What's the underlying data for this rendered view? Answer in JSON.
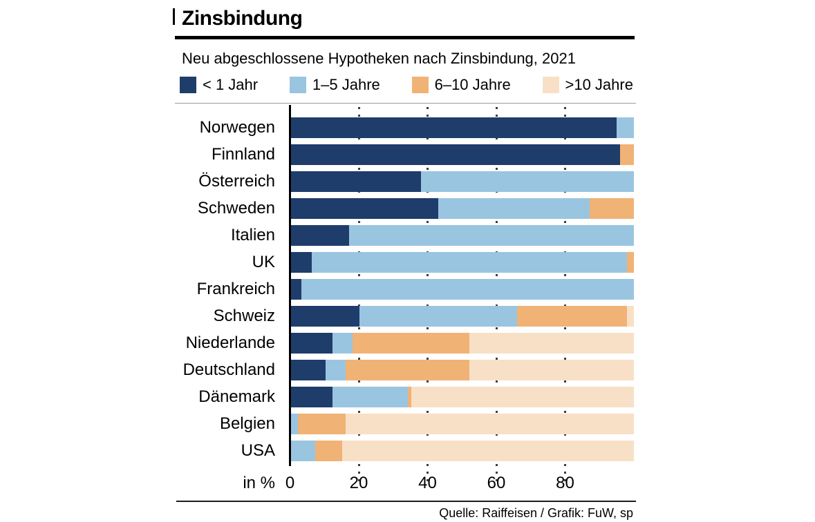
{
  "page": {
    "title": "Zinsbindung",
    "subtitle": "Neu abgeschlossene Hypotheken nach Zinsbindung, 2021",
    "axis_unit_label": "in %",
    "source": "Quelle: Raiffeisen / Grafik: FuW, sp"
  },
  "colors": {
    "navy": "#1F3D6B",
    "light_blue": "#9AC5E1",
    "orange": "#F1B276",
    "peach": "#F8E0C6",
    "rule": "#000000",
    "grid_dot": "#3C3C3C"
  },
  "chart_data": {
    "type": "bar",
    "orientation": "horizontal-stacked",
    "title": "Zinsbindung",
    "subtitle": "Neu abgeschlossene Hypotheken nach Zinsbindung, 2021",
    "xlabel": "in %",
    "xlim": [
      0,
      100
    ],
    "x_ticks": [
      0,
      20,
      40,
      60,
      80
    ],
    "grid": "dotted-vertical",
    "legend_position": "top",
    "categories": [
      "Norwegen",
      "Finnland",
      "Österreich",
      "Schweden",
      "Italien",
      "UK",
      "Frankreich",
      "Schweiz",
      "Niederlande",
      "Deutschland",
      "Dänemark",
      "Belgien",
      "USA"
    ],
    "series": [
      {
        "name": "< 1 Jahr",
        "color": "#1F3D6B",
        "values": [
          95,
          96,
          38,
          43,
          17,
          6,
          3,
          20,
          12,
          10,
          12,
          0,
          0
        ]
      },
      {
        "name": "1–5 Jahre",
        "color": "#9AC5E1",
        "values": [
          5,
          0,
          62,
          44,
          83,
          92,
          97,
          46,
          6,
          6,
          22,
          2,
          7
        ]
      },
      {
        "name": "6–10 Jahre",
        "color": "#F1B276",
        "values": [
          0,
          4,
          0,
          13,
          0,
          2,
          0,
          32,
          34,
          36,
          1,
          14,
          8
        ]
      },
      {
        "name": ">10 Jahre",
        "color": "#F8E0C6",
        "values": [
          0,
          0,
          0,
          0,
          0,
          0,
          0,
          2,
          48,
          48,
          65,
          84,
          85
        ]
      }
    ]
  }
}
